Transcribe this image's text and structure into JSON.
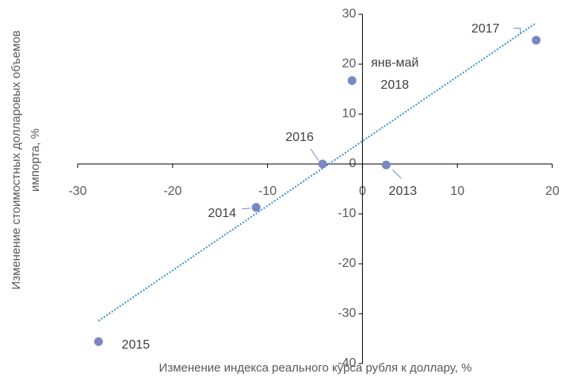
{
  "chart_data": {
    "type": "scatter",
    "x_label": "Изменение индекса реального курса рубля к доллару, %",
    "y_label": "Изменение стоимостных долларовых объемов импорта, %",
    "labels": [
      "2017",
      "янв-май 2018",
      "2016",
      "2013",
      "2014",
      "2015"
    ],
    "x": [
      18.3,
      -1.1,
      -4.2,
      2.5,
      -11.2,
      -27.8
    ],
    "y": [
      24.8,
      16.7,
      0,
      -0.2,
      -8.7,
      -35.6
    ],
    "color": "#7b86c4",
    "trendline": true,
    "trendline_color": "#3a8fd0",
    "xlim": [
      -30,
      20
    ],
    "xticks": [
      -30,
      -20,
      -10,
      0,
      10,
      20
    ],
    "ylim": [
      -40,
      30
    ],
    "yticks": [
      -40,
      -30,
      -20,
      -10,
      0,
      10,
      20,
      30
    ]
  }
}
